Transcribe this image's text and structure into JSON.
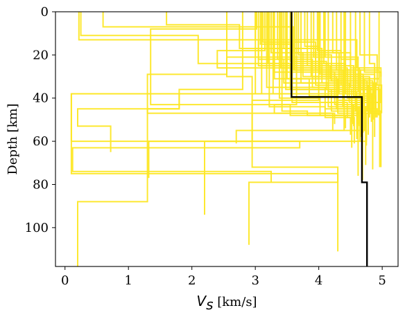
{
  "chart_data": {
    "type": "line",
    "xlabel_symbol": "V",
    "xlabel_subscript": "s",
    "xlabel_unit": " [km/s]",
    "ylabel": "Depth [km]",
    "xlim": [
      -0.15,
      5.25
    ],
    "ylim": [
      118,
      0
    ],
    "y_inverted": true,
    "xticks": [
      0,
      1,
      2,
      3,
      4,
      5
    ],
    "yticks": [
      0,
      20,
      40,
      60,
      80,
      100
    ],
    "grid": false,
    "colors": {
      "ensemble": "#fde725",
      "reference": "#000000"
    },
    "reference_profile": {
      "name": "",
      "x": [
        3.57,
        3.57,
        4.68,
        4.68,
        4.76,
        4.76
      ],
      "y": [
        0,
        39.5,
        39.5,
        79,
        79,
        118
      ]
    },
    "ensemble_profiles": [
      {
        "x": [
          0.22,
          0.22,
          3.05,
          3.05,
          4.18,
          4.18,
          4.8,
          4.8,
          4.62,
          4.62
        ],
        "y": [
          0,
          13,
          13,
          25,
          25,
          31,
          31,
          46,
          46,
          76
        ]
      },
      {
        "x": [
          0.25,
          0.25,
          2.1,
          2.1,
          3.55,
          3.55,
          4.52,
          4.52,
          4.74,
          4.74
        ],
        "y": [
          0,
          11,
          11,
          24,
          24,
          36,
          36,
          44,
          44,
          71
        ]
      },
      {
        "x": [
          1.6,
          1.6,
          2.75,
          2.75,
          3.95,
          3.95,
          4.58,
          4.58,
          4.98,
          4.98
        ],
        "y": [
          0,
          6,
          6,
          17,
          17,
          34,
          34,
          46,
          46,
          72
        ]
      },
      {
        "x": [
          0.6,
          0.6,
          3.6,
          3.6,
          4.32,
          4.32,
          4.85,
          4.85
        ],
        "y": [
          0,
          7,
          7,
          19,
          19,
          38,
          38,
          73
        ]
      },
      {
        "x": [
          3.0,
          3.0,
          1.8,
          1.8,
          0.2,
          0.2,
          0.72,
          0.72
        ],
        "y": [
          0,
          38,
          38,
          45,
          45,
          53,
          53,
          65
        ]
      },
      {
        "x": [
          2.55,
          2.55,
          1.3,
          1.3,
          4.22,
          4.22,
          4.75,
          4.75,
          1.32,
          1.32
        ],
        "y": [
          0,
          29,
          29,
          47,
          47,
          55,
          55,
          60,
          60,
          77
        ]
      },
      {
        "x": [
          3.1,
          3.1,
          0.1,
          0.1,
          3.7,
          3.7,
          0.12,
          0.12,
          3.25,
          3.25
        ],
        "y": [
          0,
          38,
          38,
          60,
          60,
          63,
          63,
          74,
          74,
          79
        ]
      },
      {
        "x": [
          2.8,
          2.8,
          1.8,
          1.8,
          1.3,
          1.3,
          0.2,
          0.2
        ],
        "y": [
          0,
          36,
          36,
          45,
          45,
          88,
          88,
          118
        ]
      },
      {
        "x": [
          4.1,
          4.1,
          2.55,
          2.55,
          2.95,
          2.95,
          2.2,
          2.2
        ],
        "y": [
          0,
          21,
          21,
          30,
          30,
          60,
          60,
          94
        ]
      },
      {
        "x": [
          4.0,
          4.0,
          2.95,
          2.95,
          4.3,
          4.3,
          2.9,
          2.9
        ],
        "y": [
          0,
          41,
          41,
          72,
          72,
          79,
          79,
          108
        ]
      },
      {
        "x": [
          3.3,
          3.3,
          3.85,
          3.85,
          4.3,
          4.3,
          0.1,
          0.1,
          4.3,
          4.3
        ],
        "y": [
          0,
          31,
          31,
          39,
          39,
          38,
          38,
          75,
          75,
          111
        ]
      },
      {
        "x": [
          4.4,
          4.4,
          2.7,
          2.7
        ],
        "y": [
          0,
          55,
          55,
          61
        ]
      },
      {
        "x": [
          3.02,
          3.02,
          1.35,
          1.35,
          3.55,
          3.55,
          4.65,
          4.65
        ],
        "y": [
          0,
          8,
          8,
          43,
          43,
          48,
          48,
          52
        ]
      },
      {
        "x": [
          3.08,
          3.08,
          3.6,
          3.6,
          4.95,
          4.95
        ],
        "y": [
          0,
          15,
          15,
          27,
          27,
          45
        ]
      },
      {
        "x": [
          3.15,
          3.15,
          2.4,
          2.4,
          4.05,
          4.05,
          4.9,
          4.9
        ],
        "y": [
          0,
          18,
          18,
          26,
          26,
          33,
          33,
          45
        ]
      },
      {
        "x": [
          3.2,
          3.2,
          4.15,
          4.15,
          4.6,
          4.6
        ],
        "y": [
          0,
          24,
          24,
          37,
          37,
          56
        ]
      },
      {
        "x": [
          3.25,
          3.25,
          3.75,
          3.75,
          4.7,
          4.7
        ],
        "y": [
          0,
          19,
          19,
          30,
          30,
          50
        ]
      },
      {
        "x": [
          3.3,
          3.3,
          4.25,
          4.25,
          4.55,
          4.55
        ],
        "y": [
          0,
          28,
          28,
          43,
          43,
          53
        ]
      },
      {
        "x": [
          3.35,
          3.35,
          3.9,
          3.9,
          4.82,
          4.82
        ],
        "y": [
          0,
          22,
          22,
          35,
          35,
          47
        ]
      },
      {
        "x": [
          3.4,
          3.4,
          4.45,
          4.45,
          4.68,
          4.68
        ],
        "y": [
          0,
          26,
          26,
          40,
          40,
          54
        ]
      },
      {
        "x": [
          3.45,
          3.45,
          4.05,
          4.05,
          4.88,
          4.88
        ],
        "y": [
          0,
          17,
          17,
          29,
          29,
          49
        ]
      },
      {
        "x": [
          3.5,
          3.5,
          4.3,
          4.3,
          4.52,
          4.52
        ],
        "y": [
          0,
          31,
          31,
          41,
          41,
          51
        ]
      },
      {
        "x": [
          3.55,
          3.55,
          4.12,
          4.12,
          4.96,
          4.96
        ],
        "y": [
          0,
          23,
          23,
          36,
          36,
          48
        ]
      },
      {
        "x": [
          3.62,
          3.62,
          4.38,
          4.38,
          4.62,
          4.62
        ],
        "y": [
          0,
          27,
          27,
          44,
          44,
          52
        ]
      },
      {
        "x": [
          3.68,
          3.68,
          4.2,
          4.2,
          4.85,
          4.85
        ],
        "y": [
          0,
          20,
          20,
          32,
          32,
          50
        ]
      },
      {
        "x": [
          3.72,
          3.72,
          4.48,
          4.48,
          4.72,
          4.72
        ],
        "y": [
          0,
          33,
          33,
          42,
          42,
          55
        ]
      },
      {
        "x": [
          3.78,
          3.78,
          4.0,
          4.0,
          4.58,
          4.58
        ],
        "y": [
          0,
          16,
          16,
          28,
          28,
          46
        ]
      },
      {
        "x": [
          3.82,
          3.82,
          4.55,
          4.55,
          4.78,
          4.78
        ],
        "y": [
          0,
          25,
          25,
          39,
          39,
          57
        ]
      },
      {
        "x": [
          3.88,
          3.88,
          4.28,
          4.28,
          4.92,
          4.92
        ],
        "y": [
          0,
          30,
          30,
          45,
          45,
          49
        ]
      },
      {
        "x": [
          3.92,
          3.92,
          4.62,
          4.62,
          4.66,
          4.66
        ],
        "y": [
          0,
          21,
          21,
          37,
          37,
          58
        ]
      },
      {
        "x": [
          3.98,
          3.98,
          4.35,
          4.35,
          4.99,
          4.99
        ],
        "y": [
          0,
          18,
          18,
          34,
          34,
          47
        ]
      },
      {
        "x": [
          4.02,
          4.02,
          4.7,
          4.7,
          4.54,
          4.54
        ],
        "y": [
          0,
          29,
          29,
          43,
          43,
          52
        ]
      },
      {
        "x": [
          4.08,
          4.08,
          4.42,
          4.42,
          4.83,
          4.83
        ],
        "y": [
          0,
          24,
          24,
          38,
          38,
          51
        ]
      },
      {
        "x": [
          4.15,
          4.15,
          4.76,
          4.76,
          4.6,
          4.6
        ],
        "y": [
          0,
          32,
          32,
          46,
          46,
          59
        ]
      },
      {
        "x": [
          4.22,
          4.22,
          4.5,
          4.5,
          4.94,
          4.94
        ],
        "y": [
          0,
          19,
          19,
          35,
          35,
          48
        ]
      },
      {
        "x": [
          4.28,
          4.28,
          4.66,
          4.66,
          4.7,
          4.7
        ],
        "y": [
          0,
          27,
          27,
          41,
          41,
          56
        ]
      },
      {
        "x": [
          4.35,
          4.35,
          4.58,
          4.58,
          4.86,
          4.86
        ],
        "y": [
          0,
          22,
          22,
          36,
          36,
          50
        ]
      },
      {
        "x": [
          4.42,
          4.42,
          4.8,
          4.8,
          4.64,
          4.64
        ],
        "y": [
          0,
          30,
          30,
          44,
          44,
          53
        ]
      },
      {
        "x": [
          4.5,
          4.5,
          4.64,
          4.64,
          4.9,
          4.9
        ],
        "y": [
          0,
          26,
          26,
          39,
          39,
          49
        ]
      },
      {
        "x": [
          4.58,
          4.58,
          4.86,
          4.86,
          4.74,
          4.74
        ],
        "y": [
          0,
          33,
          33,
          45,
          45,
          55
        ]
      },
      {
        "x": [
          4.65,
          4.65,
          4.92,
          4.92,
          4.78,
          4.78
        ],
        "y": [
          0,
          20,
          20,
          34,
          34,
          52
        ]
      },
      {
        "x": [
          4.72,
          4.72,
          4.98,
          4.98,
          4.6,
          4.6
        ],
        "y": [
          0,
          28,
          28,
          42,
          42,
          57
        ]
      },
      {
        "x": [
          4.8,
          4.8,
          4.88,
          4.88,
          4.69,
          4.69
        ],
        "y": [
          0,
          24,
          24,
          40,
          40,
          78
        ]
      },
      {
        "x": [
          4.95,
          4.95,
          4.72,
          4.72,
          4.96,
          4.96
        ],
        "y": [
          0,
          31,
          31,
          47,
          47,
          72
        ]
      },
      {
        "x": [
          3.05,
          3.05,
          3.45,
          3.45,
          4.15,
          4.15,
          4.6,
          4.6
        ],
        "y": [
          0,
          22,
          22,
          33,
          33,
          44,
          44,
          50
        ]
      },
      {
        "x": [
          3.12,
          3.12,
          3.95,
          3.95,
          4.4,
          4.4,
          4.8,
          4.8
        ],
        "y": [
          0,
          14,
          14,
          27,
          27,
          41,
          41,
          49
        ]
      },
      {
        "x": [
          3.18,
          3.18,
          4.1,
          4.1,
          4.65,
          4.65
        ],
        "y": [
          0,
          35,
          35,
          45,
          45,
          60
        ]
      },
      {
        "x": [
          3.28,
          3.28,
          4.3,
          4.3,
          4.75,
          4.75
        ],
        "y": [
          0,
          38,
          38,
          47,
          47,
          62
        ]
      },
      {
        "x": [
          3.38,
          3.38,
          4.02,
          4.02,
          4.52,
          4.52
        ],
        "y": [
          0,
          40,
          40,
          48,
          48,
          63
        ]
      },
      {
        "x": [
          3.48,
          3.48,
          4.2,
          4.2,
          4.88,
          4.88
        ],
        "y": [
          0,
          36,
          36,
          46,
          46,
          58
        ]
      },
      {
        "x": [
          3.58,
          3.58,
          4.45,
          4.45,
          4.56,
          4.56
        ],
        "y": [
          0,
          42,
          42,
          49,
          49,
          61
        ]
      },
      {
        "x": [
          3.0,
          3.0,
          4.6,
          4.6,
          4.98,
          4.98
        ],
        "y": [
          0,
          13,
          13,
          26,
          26,
          30
        ]
      },
      {
        "x": [
          3.22,
          3.22,
          4.1,
          4.1,
          4.5,
          4.5
        ],
        "y": [
          0,
          44,
          44,
          49,
          49,
          57
        ]
      },
      {
        "x": [
          3.42,
          3.42,
          3.82,
          3.82,
          4.42,
          4.42
        ],
        "y": [
          0,
          46,
          46,
          48,
          48,
          54
        ]
      },
      {
        "x": [
          3.65,
          3.65,
          3.3,
          3.3,
          4.25,
          4.25
        ],
        "y": [
          0,
          43,
          43,
          47,
          47,
          52
        ]
      }
    ]
  }
}
